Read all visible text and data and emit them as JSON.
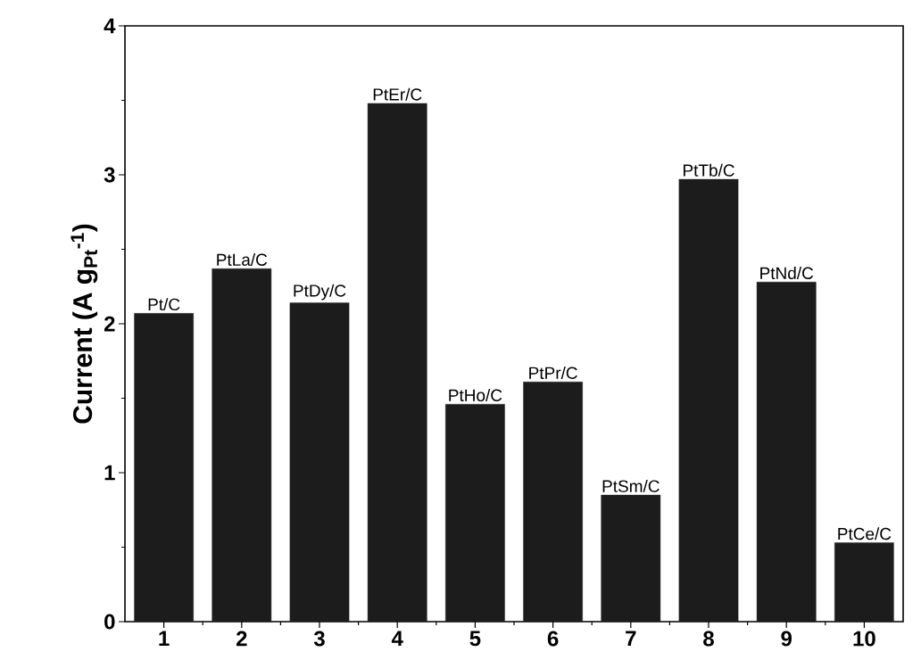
{
  "chart_data": {
    "type": "bar",
    "ylabel": "Current (A g$_{Pt}$$^{-1}$)",
    "x": [
      1,
      2,
      3,
      4,
      5,
      6,
      7,
      8,
      9,
      10
    ],
    "values": [
      2.07,
      2.37,
      2.14,
      3.48,
      1.46,
      1.61,
      0.85,
      2.97,
      2.28,
      0.53
    ],
    "color": "#1c1c1c",
    "xlim": [
      0.5,
      10.5
    ],
    "xticks": [
      1,
      2,
      3,
      4,
      5,
      6,
      7,
      8,
      9,
      10
    ],
    "ylim": [
      0,
      4
    ],
    "yticks": [
      0,
      1,
      2,
      3,
      4
    ],
    "grid": false,
    "annotations": [
      {
        "text": "Pt/C",
        "x": 1,
        "y": 2.07
      },
      {
        "text": "PtLa/C",
        "x": 2,
        "y": 2.37
      },
      {
        "text": "PtDy/C",
        "x": 3,
        "y": 2.14
      },
      {
        "text": "PtEr/C",
        "x": 4,
        "y": 3.48
      },
      {
        "text": "PtHo/C",
        "x": 5,
        "y": 1.46
      },
      {
        "text": "PtPr/C",
        "x": 6,
        "y": 1.61
      },
      {
        "text": "PtSm/C",
        "x": 7,
        "y": 0.85
      },
      {
        "text": "PtTb/C",
        "x": 8,
        "y": 2.97
      },
      {
        "text": "PtNd/C",
        "x": 9,
        "y": 2.28
      },
      {
        "text": "PtCe/C",
        "x": 10,
        "y": 0.53
      }
    ]
  }
}
